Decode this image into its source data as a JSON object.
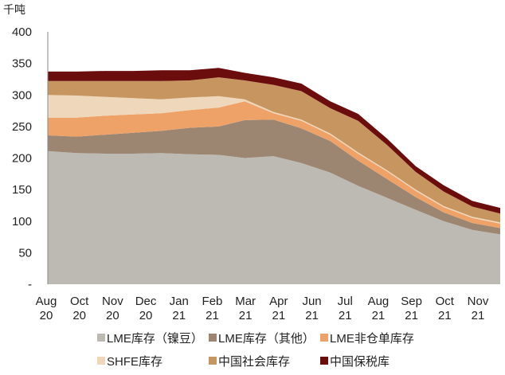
{
  "chart_data": {
    "type": "area",
    "stacked": true,
    "unit_label": "千吨",
    "ylim": [
      0,
      400
    ],
    "y_ticks": [
      "-",
      "50",
      "100",
      "150",
      "200",
      "250",
      "300",
      "350",
      "400"
    ],
    "x_ticks": [
      {
        "month": "Aug",
        "year": "20"
      },
      {
        "month": "Oct",
        "year": "20"
      },
      {
        "month": "Nov",
        "year": "20"
      },
      {
        "month": "Dec",
        "year": "20"
      },
      {
        "month": "Jan",
        "year": "21"
      },
      {
        "month": "Feb",
        "year": "21"
      },
      {
        "month": "Mar",
        "year": "21"
      },
      {
        "month": "Apr",
        "year": "21"
      },
      {
        "month": "Jun",
        "year": "21"
      },
      {
        "month": "Jul",
        "year": "21"
      },
      {
        "month": "Aug",
        "year": "21"
      },
      {
        "month": "Sep",
        "year": "21"
      },
      {
        "month": "Oct",
        "year": "21"
      },
      {
        "month": "Nov",
        "year": "21"
      }
    ],
    "x": [
      "2020-08-01",
      "2020-09-01",
      "2020-10-01",
      "2020-11-01",
      "2020-12-01",
      "2021-01-01",
      "2021-02-01",
      "2021-03-01",
      "2021-04-01",
      "2021-05-01",
      "2021-06-01",
      "2021-07-01",
      "2021-08-01",
      "2021-09-01",
      "2021-10-01",
      "2021-11-01",
      "2021-12-01"
    ],
    "series": [
      {
        "name": "LME库存（镍豆）",
        "color": "#bcbab2",
        "values": [
          211,
          208,
          207,
          207,
          208,
          206,
          205,
          200,
          203,
          192,
          177,
          156,
          137,
          118,
          100,
          86,
          79
        ]
      },
      {
        "name": "LME库存（其他）",
        "color": "#9c8672",
        "values": [
          25,
          26,
          30,
          33,
          35,
          42,
          45,
          60,
          58,
          55,
          50,
          40,
          30,
          20,
          14,
          11,
          10
        ]
      },
      {
        "name": "LME非仓单库存",
        "color": "#eea268",
        "values": [
          28,
          30,
          30,
          29,
          28,
          28,
          30,
          30,
          10,
          12,
          10,
          11,
          12,
          10,
          8,
          8,
          7
        ]
      },
      {
        "name": "SHFE库存",
        "color": "#efd7bb",
        "values": [
          36,
          35,
          30,
          26,
          22,
          20,
          18,
          3,
          2,
          2,
          2,
          2,
          2,
          2,
          2,
          2,
          2
        ]
      },
      {
        "name": "中国社会库存",
        "color": "#c7955f",
        "values": [
          22,
          23,
          25,
          27,
          29,
          27,
          30,
          30,
          43,
          45,
          40,
          50,
          40,
          28,
          23,
          16,
          14
        ]
      },
      {
        "name": "中国保税库",
        "color": "#6b0d0d",
        "values": [
          15,
          15,
          16,
          16,
          17,
          16,
          15,
          12,
          12,
          12,
          11,
          11,
          10,
          9,
          10,
          9,
          9
        ]
      }
    ]
  }
}
